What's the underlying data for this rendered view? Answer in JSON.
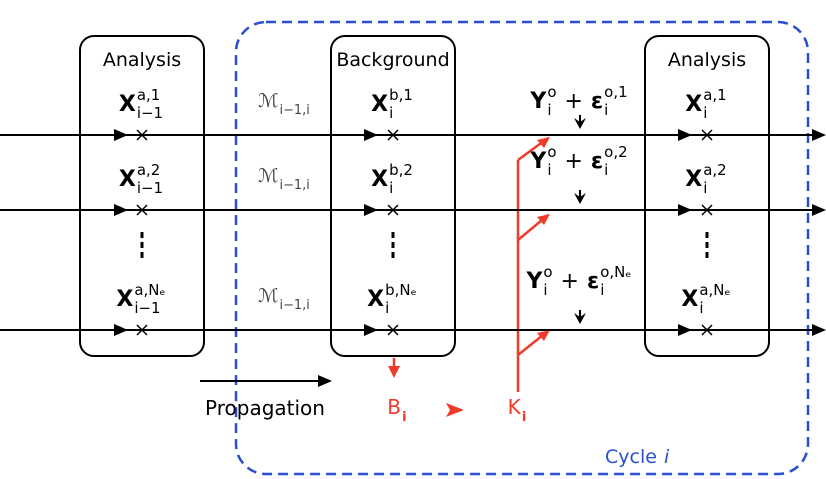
{
  "columns": [
    {
      "title": "Analysis",
      "members": [
        {
          "base": "X",
          "sup": "a,1",
          "sub": "i−1"
        },
        {
          "base": "X",
          "sup": "a,2",
          "sub": "i−1"
        },
        {
          "base": "X",
          "sup": "a,Nₑ",
          "sub": "i−1"
        }
      ]
    },
    {
      "title": "Background",
      "members": [
        {
          "base": "X",
          "sup": "b,1",
          "sub": "i"
        },
        {
          "base": "X",
          "sup": "b,2",
          "sub": "i"
        },
        {
          "base": "X",
          "sup": "b,Nₑ",
          "sub": "i"
        }
      ]
    },
    {
      "title": "Analysis",
      "members": [
        {
          "base": "X",
          "sup": "a,1",
          "sub": "i"
        },
        {
          "base": "X",
          "sup": "a,2",
          "sub": "i"
        },
        {
          "base": "X",
          "sup": "a,Nₑ",
          "sub": "i"
        }
      ]
    }
  ],
  "models": [
    {
      "base": "ℳ",
      "sub": "i−1,i"
    },
    {
      "base": "ℳ",
      "sub": "i−1,i"
    },
    {
      "base": "ℳ",
      "sub": "i−1,i"
    }
  ],
  "observations": [
    {
      "y": "Y",
      "y_sup": "o",
      "y_sub": "i",
      "op": "+",
      "e": "ε",
      "e_sup": "o,1",
      "e_sub": "i"
    },
    {
      "y": "Y",
      "y_sup": "o",
      "y_sub": "i",
      "op": "+",
      "e": "ε",
      "e_sup": "o,2",
      "e_sub": "i"
    },
    {
      "y": "Y",
      "y_sup": "o",
      "y_sub": "i",
      "op": "+",
      "e": "ε",
      "e_sup": "o,Nₑ",
      "e_sub": "i"
    }
  ],
  "background_cov": {
    "base": "B",
    "sub": "i"
  },
  "gain": {
    "base": "K",
    "sub": "i"
  },
  "propagation": "Propagation",
  "cycle": {
    "text": "Cycle",
    "var": "i"
  }
}
